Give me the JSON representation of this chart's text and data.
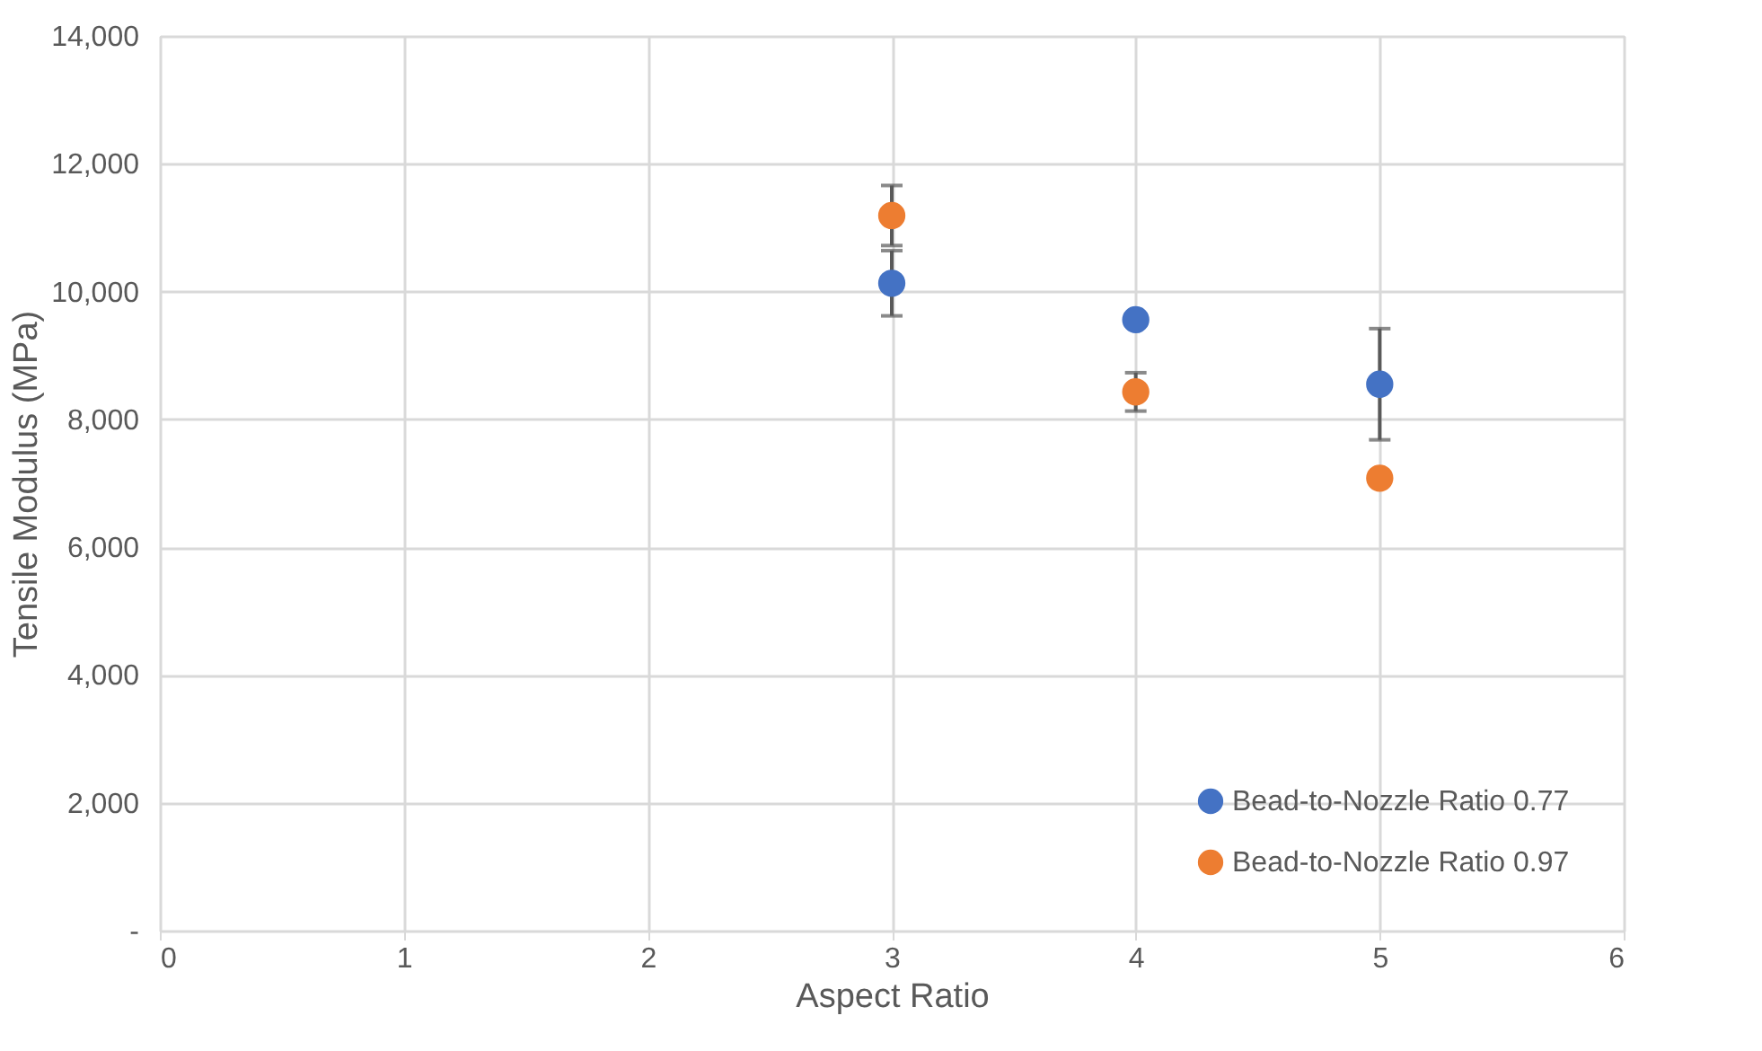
{
  "chart_data": {
    "type": "scatter",
    "xlabel": "Aspect Ratio",
    "ylabel": "Tensile Modulus (MPa)",
    "x": [
      3,
      4,
      5
    ],
    "series": [
      {
        "name": "Bead-to-Nozzle Ratio 0.77",
        "color": "#4472c4",
        "values": [
          10130,
          9560,
          8550
        ],
        "errors": [
          510,
          null,
          870
        ]
      },
      {
        "name": "Bead-to-Nozzle Ratio 0.97",
        "color": "#ed7d31",
        "values": [
          11190,
          8430,
          7080
        ],
        "errors": [
          470,
          300,
          null
        ]
      }
    ],
    "xlim": [
      0,
      6
    ],
    "xticks": [
      0,
      1,
      2,
      3,
      4,
      5,
      6
    ],
    "ylim": [
      0,
      14000
    ],
    "yticks": [
      {
        "value": 0,
        "label": "-"
      },
      {
        "value": 2000,
        "label": "2,000"
      },
      {
        "value": 4000,
        "label": "4,000"
      },
      {
        "value": 6000,
        "label": "6,000"
      },
      {
        "value": 8000,
        "label": "8,000"
      },
      {
        "value": 10000,
        "label": "10,000"
      },
      {
        "value": 12000,
        "label": "12,000"
      },
      {
        "value": 14000,
        "label": "14,000"
      }
    ],
    "grid": true,
    "legend": "bottom right",
    "marker": "circle"
  }
}
